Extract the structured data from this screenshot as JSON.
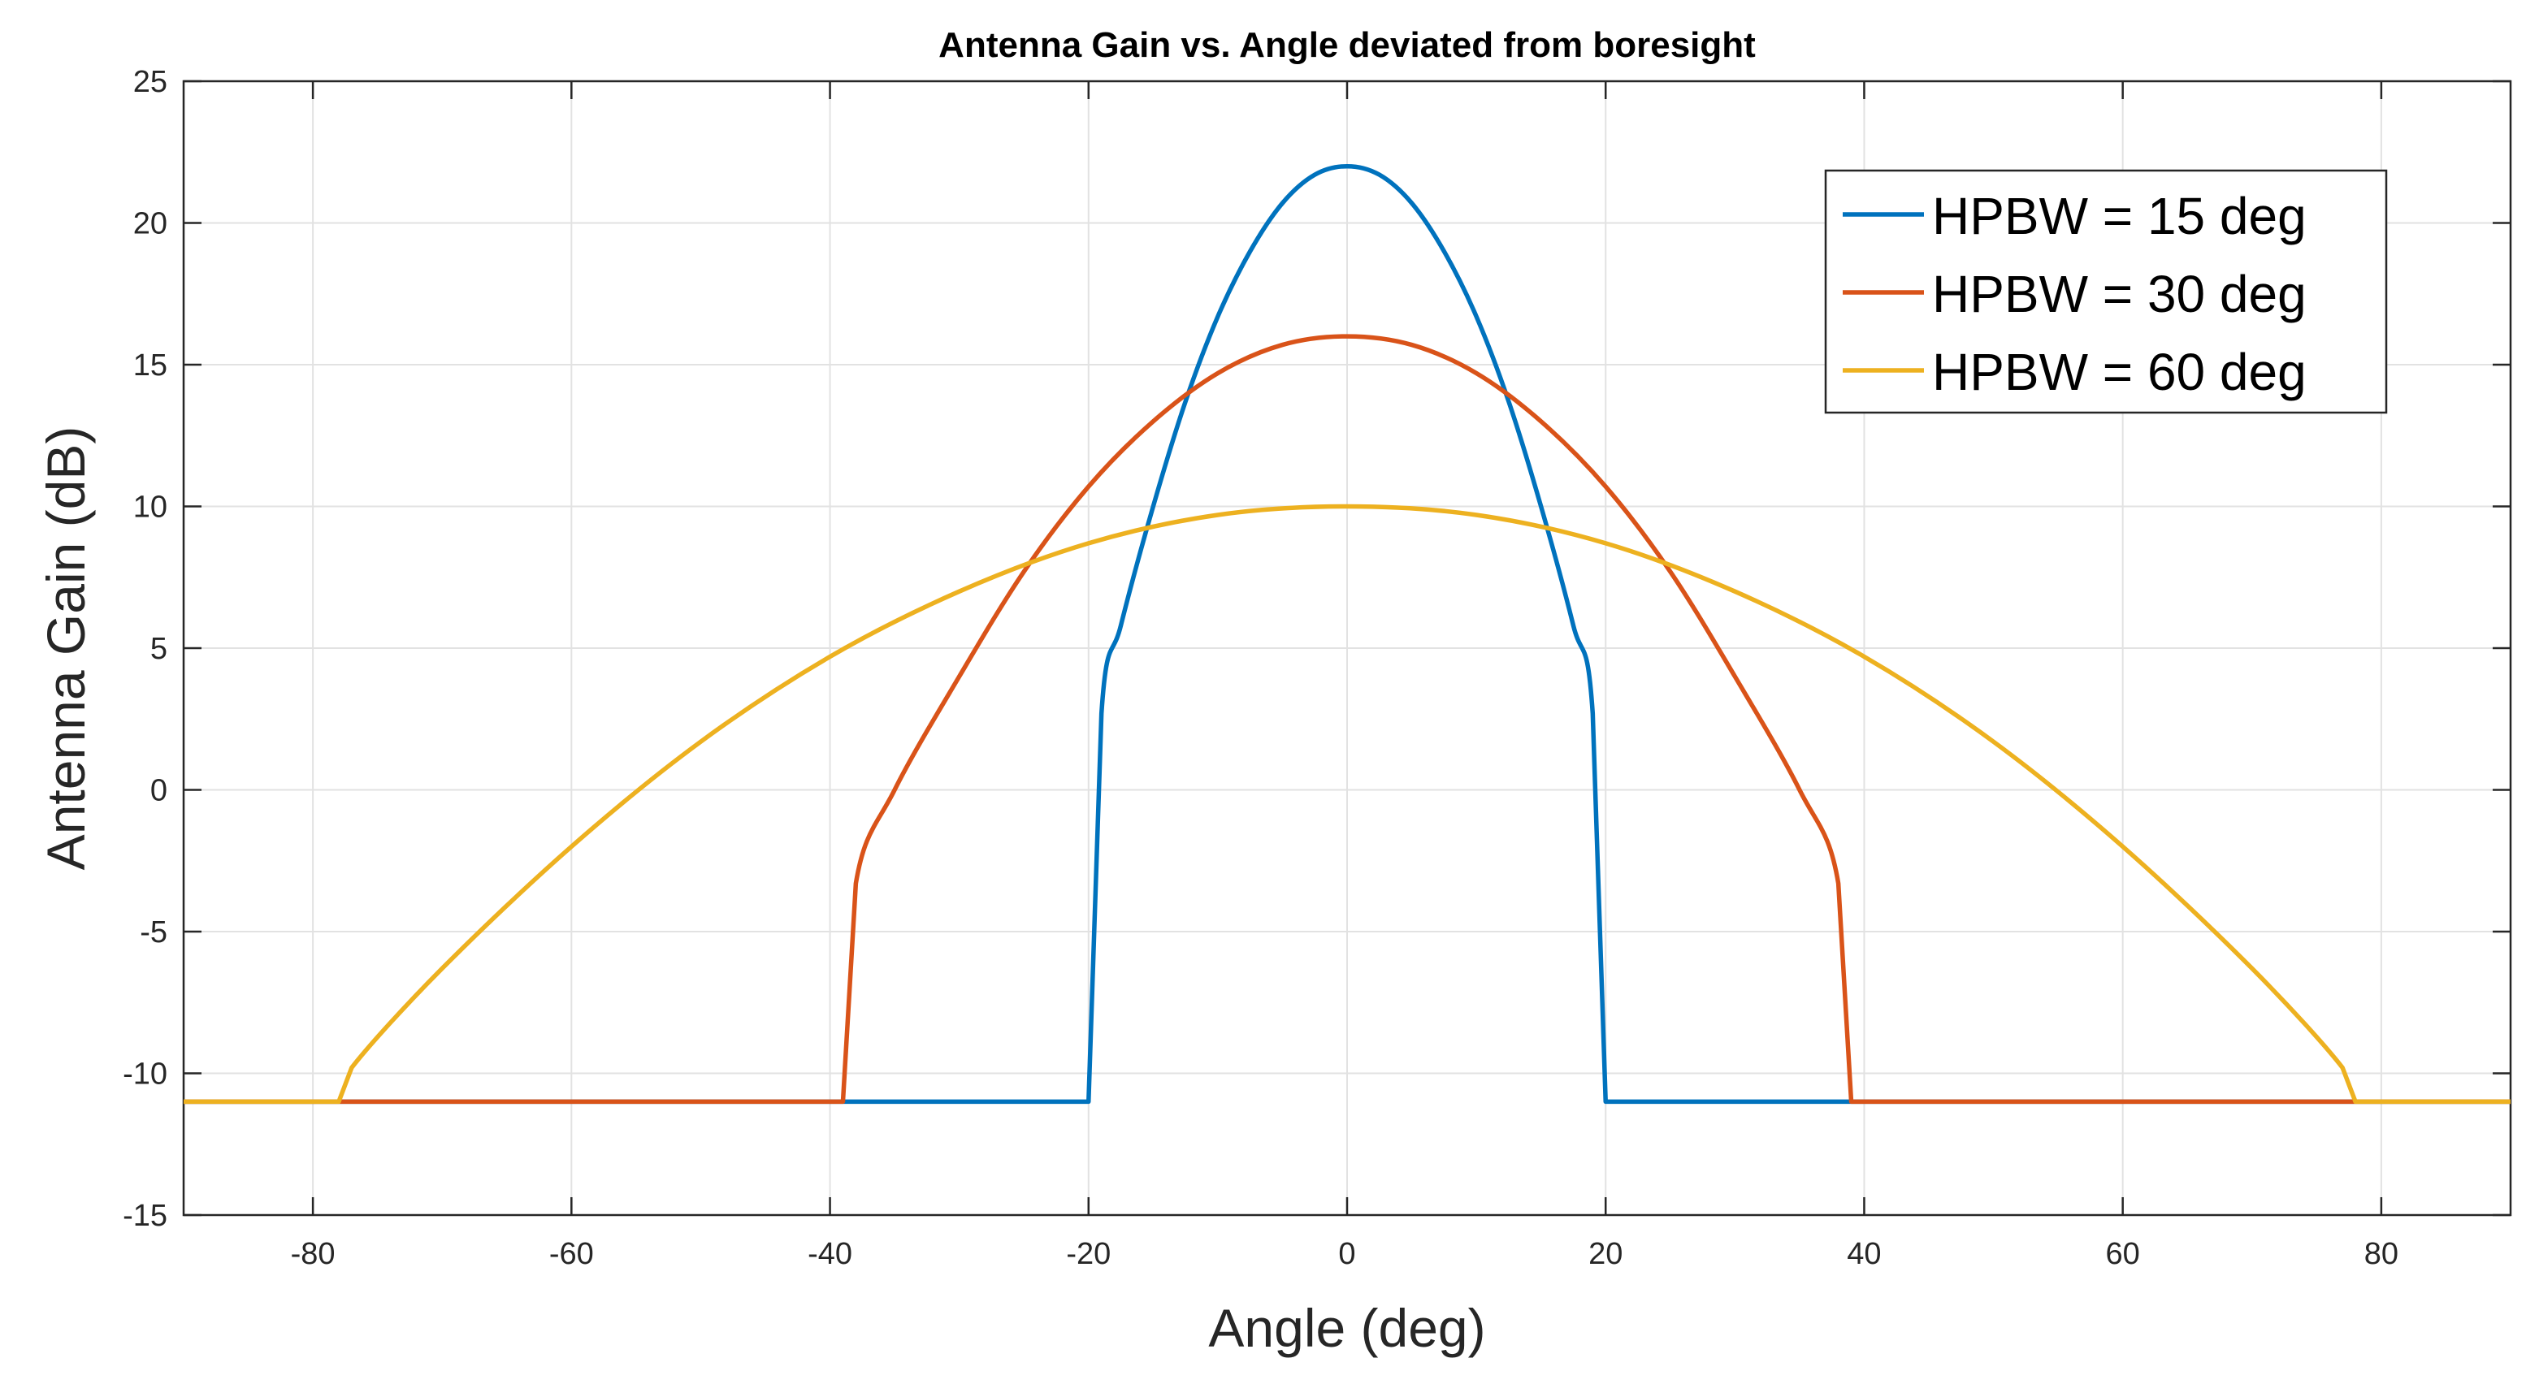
{
  "chart_data": {
    "type": "line",
    "title": "Antenna Gain vs. Angle deviated from boresight",
    "xlabel": "Angle (deg)",
    "ylabel": "Antenna Gain (dB)",
    "xlim": [
      -90,
      90
    ],
    "ylim": [
      -15,
      25
    ],
    "xticks": [
      -80,
      -60,
      -40,
      -20,
      0,
      20,
      40,
      60,
      80
    ],
    "yticks": [
      -15,
      -10,
      -5,
      0,
      5,
      10,
      15,
      20,
      25
    ],
    "grid": true,
    "legend_position": "top-right",
    "series": [
      {
        "name": "HPBW = 15 deg",
        "color": "#0072BD",
        "x": [
          -90,
          -20,
          -19,
          -17.5,
          -15,
          -12.5,
          -10,
          -7.5,
          -5,
          -2.5,
          0,
          2.5,
          5,
          7.5,
          10,
          12.5,
          15,
          17.5,
          19,
          20,
          90
        ],
        "y": [
          -11,
          -11,
          2.7,
          5.8,
          10.0,
          13.7,
          16.7,
          19.0,
          20.7,
          21.7,
          22.0,
          21.7,
          20.7,
          19.0,
          16.7,
          13.7,
          10.0,
          5.8,
          2.7,
          -11,
          -11
        ]
      },
      {
        "name": "HPBW = 30 deg",
        "color": "#D95319",
        "x": [
          -90,
          -39,
          -38,
          -35,
          -30,
          -25,
          -20,
          -15,
          -10,
          -5,
          0,
          5,
          10,
          15,
          20,
          25,
          30,
          35,
          38,
          39,
          90
        ],
        "y": [
          -11,
          -11,
          -3.3,
          0.0,
          4.0,
          7.7,
          10.7,
          13.0,
          14.7,
          15.7,
          16.0,
          15.7,
          14.7,
          13.0,
          10.7,
          7.7,
          4.0,
          0.0,
          -3.3,
          -11,
          -11
        ]
      },
      {
        "name": "HPBW = 60 deg",
        "color": "#EDB120",
        "x": [
          -90,
          -78,
          -77,
          -70,
          -60,
          -50,
          -40,
          -30,
          -20,
          -10,
          0,
          10,
          20,
          30,
          40,
          50,
          60,
          70,
          77,
          78,
          90
        ],
        "y": [
          -11,
          -11,
          -9.8,
          -6.3,
          -2.0,
          1.7,
          4.7,
          7.0,
          8.7,
          9.7,
          10.0,
          9.7,
          8.7,
          7.0,
          4.7,
          1.7,
          -2.0,
          -6.3,
          -9.8,
          -11,
          -11
        ]
      }
    ]
  }
}
